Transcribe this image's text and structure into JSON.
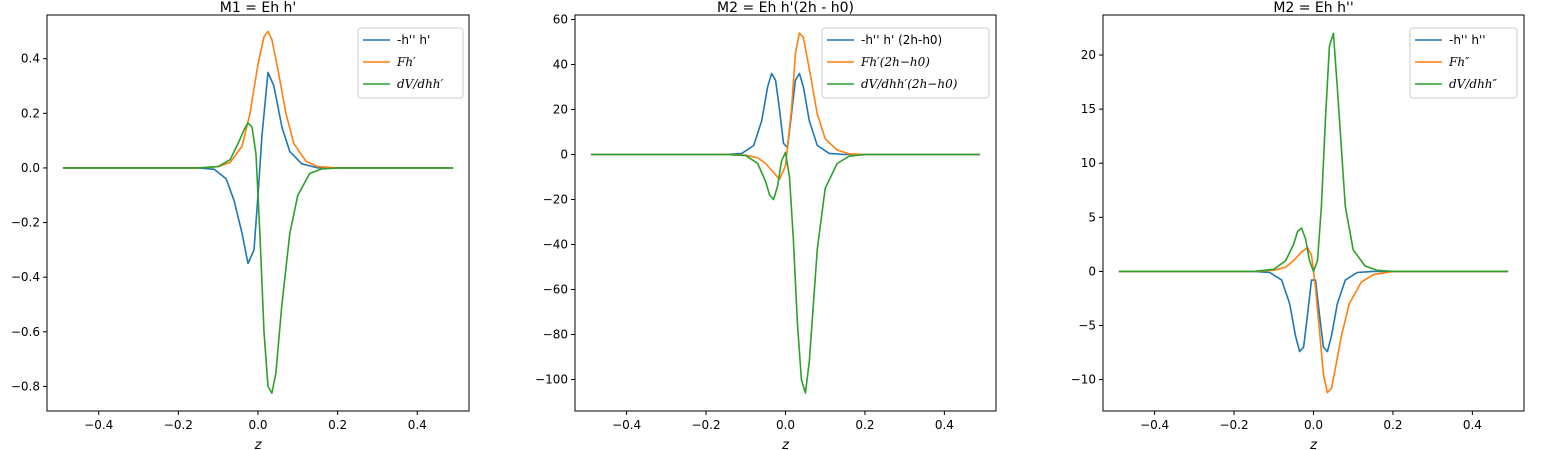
{
  "chart_data": [
    {
      "type": "line",
      "title": "M1 = Eh h'",
      "xlabel": "z",
      "ylabel": "",
      "xlim": [
        -0.53,
        0.53
      ],
      "ylim": [
        -0.89,
        0.56
      ],
      "xticks": [
        -0.4,
        -0.2,
        0.0,
        0.2,
        0.4
      ],
      "xtick_labels": [
        "−0.4",
        "−0.2",
        "0.0",
        "0.2",
        "0.4"
      ],
      "yticks": [
        -0.8,
        -0.6,
        -0.4,
        -0.2,
        0.0,
        0.2,
        0.4
      ],
      "ytick_labels": [
        "−0.8",
        "−0.6",
        "−0.4",
        "−0.2",
        "0.0",
        "0.2",
        "0.4"
      ],
      "legend_position": "top-right",
      "grid": false,
      "series": [
        {
          "name": "-h'' h'",
          "math": false,
          "color": "#1f77b4",
          "x": [
            -0.49,
            -0.15,
            -0.11,
            -0.08,
            -0.06,
            -0.04,
            -0.025,
            -0.01,
            0.0,
            0.01,
            0.025,
            0.04,
            0.06,
            0.08,
            0.11,
            0.15,
            0.49
          ],
          "y": [
            0,
            0,
            -0.005,
            -0.04,
            -0.12,
            -0.24,
            -0.35,
            -0.3,
            -0.1,
            0.12,
            0.35,
            0.3,
            0.15,
            0.06,
            0.015,
            0,
            0
          ]
        },
        {
          "name": "Fh′",
          "math": true,
          "color": "#ff7f0e",
          "x": [
            -0.49,
            -0.15,
            -0.1,
            -0.07,
            -0.04,
            -0.02,
            0.0,
            0.015,
            0.025,
            0.035,
            0.05,
            0.07,
            0.09,
            0.12,
            0.15,
            0.2,
            0.49
          ],
          "y": [
            0,
            0,
            0.005,
            0.02,
            0.08,
            0.2,
            0.38,
            0.48,
            0.5,
            0.47,
            0.36,
            0.2,
            0.09,
            0.025,
            0.005,
            0,
            0
          ]
        },
        {
          "name": "dV/dhh′",
          "math": true,
          "color": "#2ca02c",
          "x": [
            -0.49,
            -0.15,
            -0.1,
            -0.07,
            -0.05,
            -0.035,
            -0.025,
            -0.015,
            -0.005,
            0.005,
            0.015,
            0.025,
            0.035,
            0.045,
            0.06,
            0.08,
            0.1,
            0.13,
            0.16,
            0.2,
            0.49
          ],
          "y": [
            0,
            0,
            0.005,
            0.03,
            0.09,
            0.14,
            0.165,
            0.15,
            0.05,
            -0.25,
            -0.6,
            -0.8,
            -0.825,
            -0.75,
            -0.5,
            -0.24,
            -0.1,
            -0.02,
            -0.004,
            0,
            0
          ]
        }
      ]
    },
    {
      "type": "line",
      "title": "M2 = Eh h'(2h - h0)",
      "xlabel": "z",
      "ylabel": "",
      "xlim": [
        -0.53,
        0.53
      ],
      "ylim": [
        -114,
        62
      ],
      "xticks": [
        -0.4,
        -0.2,
        0.0,
        0.2,
        0.4
      ],
      "xtick_labels": [
        "−0.4",
        "−0.2",
        "0.0",
        "0.2",
        "0.4"
      ],
      "yticks": [
        -100,
        -80,
        -60,
        -40,
        -20,
        0,
        20,
        40,
        60
      ],
      "ytick_labels": [
        "−100",
        "−80",
        "−60",
        "−40",
        "−20",
        "0",
        "20",
        "40",
        "60"
      ],
      "legend_position": "top-right",
      "grid": false,
      "series": [
        {
          "name": "-h'' h' (2h-h0)",
          "math": false,
          "color": "#1f77b4",
          "x": [
            -0.49,
            -0.15,
            -0.11,
            -0.08,
            -0.06,
            -0.045,
            -0.035,
            -0.025,
            -0.015,
            -0.005,
            0.005,
            0.015,
            0.025,
            0.035,
            0.045,
            0.06,
            0.08,
            0.11,
            0.15,
            0.49
          ],
          "y": [
            0,
            0,
            0.5,
            4,
            15,
            30,
            36,
            33,
            20,
            5,
            3,
            18,
            33,
            36,
            30,
            15,
            4,
            0.5,
            0,
            0
          ]
        },
        {
          "name": "Fh′(2h−h0)",
          "math": true,
          "color": "#ff7f0e",
          "x": [
            -0.49,
            -0.15,
            -0.1,
            -0.07,
            -0.05,
            -0.03,
            -0.015,
            0.0,
            0.015,
            0.025,
            0.035,
            0.045,
            0.06,
            0.08,
            0.1,
            0.13,
            0.16,
            0.2,
            0.49
          ],
          "y": [
            0,
            0,
            -0.3,
            -1.5,
            -4,
            -8,
            -11,
            -5,
            20,
            45,
            54,
            52,
            38,
            18,
            7,
            2,
            0.3,
            0,
            0
          ]
        },
        {
          "name": "dV/dhh′(2h−h0)",
          "math": true,
          "color": "#2ca02c",
          "x": [
            -0.49,
            -0.15,
            -0.1,
            -0.07,
            -0.05,
            -0.04,
            -0.03,
            -0.02,
            -0.01,
            0.0,
            0.01,
            0.02,
            0.03,
            0.04,
            0.05,
            0.06,
            0.08,
            0.1,
            0.13,
            0.16,
            0.2,
            0.49
          ],
          "y": [
            0,
            0,
            -0.5,
            -4,
            -12,
            -18,
            -20,
            -14,
            -3,
            1,
            -10,
            -38,
            -75,
            -100,
            -106,
            -92,
            -42,
            -15,
            -4,
            -0.8,
            0,
            0
          ]
        }
      ]
    },
    {
      "type": "line",
      "title": "M2 = Eh h''",
      "xlabel": "z",
      "ylabel": "",
      "xlim": [
        -0.53,
        0.53
      ],
      "ylim": [
        -12.9,
        23.7
      ],
      "xticks": [
        -0.4,
        -0.2,
        0.0,
        0.2,
        0.4
      ],
      "xtick_labels": [
        "−0.4",
        "−0.2",
        "0.0",
        "0.2",
        "0.4"
      ],
      "yticks": [
        -10,
        -5,
        0,
        5,
        10,
        15,
        20
      ],
      "ytick_labels": [
        "−10",
        "−5",
        "0",
        "5",
        "10",
        "15",
        "20"
      ],
      "legend_position": "top-right",
      "grid": false,
      "series": [
        {
          "name": "-h'' h''",
          "math": false,
          "color": "#1f77b4",
          "x": [
            -0.49,
            -0.15,
            -0.11,
            -0.08,
            -0.06,
            -0.045,
            -0.035,
            -0.025,
            -0.015,
            -0.005,
            0.005,
            0.015,
            0.025,
            0.035,
            0.045,
            0.06,
            0.08,
            0.11,
            0.15,
            0.49
          ],
          "y": [
            0,
            0,
            -0.1,
            -0.8,
            -3,
            -6,
            -7.4,
            -7,
            -4,
            -0.8,
            -0.8,
            -4,
            -7,
            -7.4,
            -6,
            -3,
            -0.8,
            -0.1,
            0,
            0
          ]
        },
        {
          "name": "Fh″",
          "math": true,
          "color": "#ff7f0e",
          "x": [
            -0.49,
            -0.15,
            -0.1,
            -0.07,
            -0.05,
            -0.03,
            -0.015,
            -0.005,
            0.005,
            0.015,
            0.025,
            0.035,
            0.045,
            0.055,
            0.07,
            0.09,
            0.12,
            0.15,
            0.2,
            0.49
          ],
          "y": [
            0,
            0,
            0.1,
            0.4,
            1,
            1.8,
            2.2,
            1.5,
            -1.5,
            -5.5,
            -9.5,
            -11.2,
            -10.8,
            -9,
            -6,
            -3,
            -1,
            -0.3,
            0,
            0
          ]
        },
        {
          "name": "dV/dhh″",
          "math": true,
          "color": "#2ca02c",
          "x": [
            -0.49,
            -0.15,
            -0.1,
            -0.07,
            -0.05,
            -0.04,
            -0.03,
            -0.02,
            -0.01,
            0.0,
            0.01,
            0.02,
            0.03,
            0.04,
            0.05,
            0.06,
            0.08,
            0.1,
            0.13,
            0.16,
            0.2,
            0.49
          ],
          "y": [
            0,
            0,
            0.2,
            1,
            2.5,
            3.7,
            4,
            3,
            1,
            0,
            1,
            6,
            14,
            20.8,
            22,
            17,
            6,
            2,
            0.5,
            0.1,
            0,
            0
          ]
        }
      ]
    }
  ]
}
